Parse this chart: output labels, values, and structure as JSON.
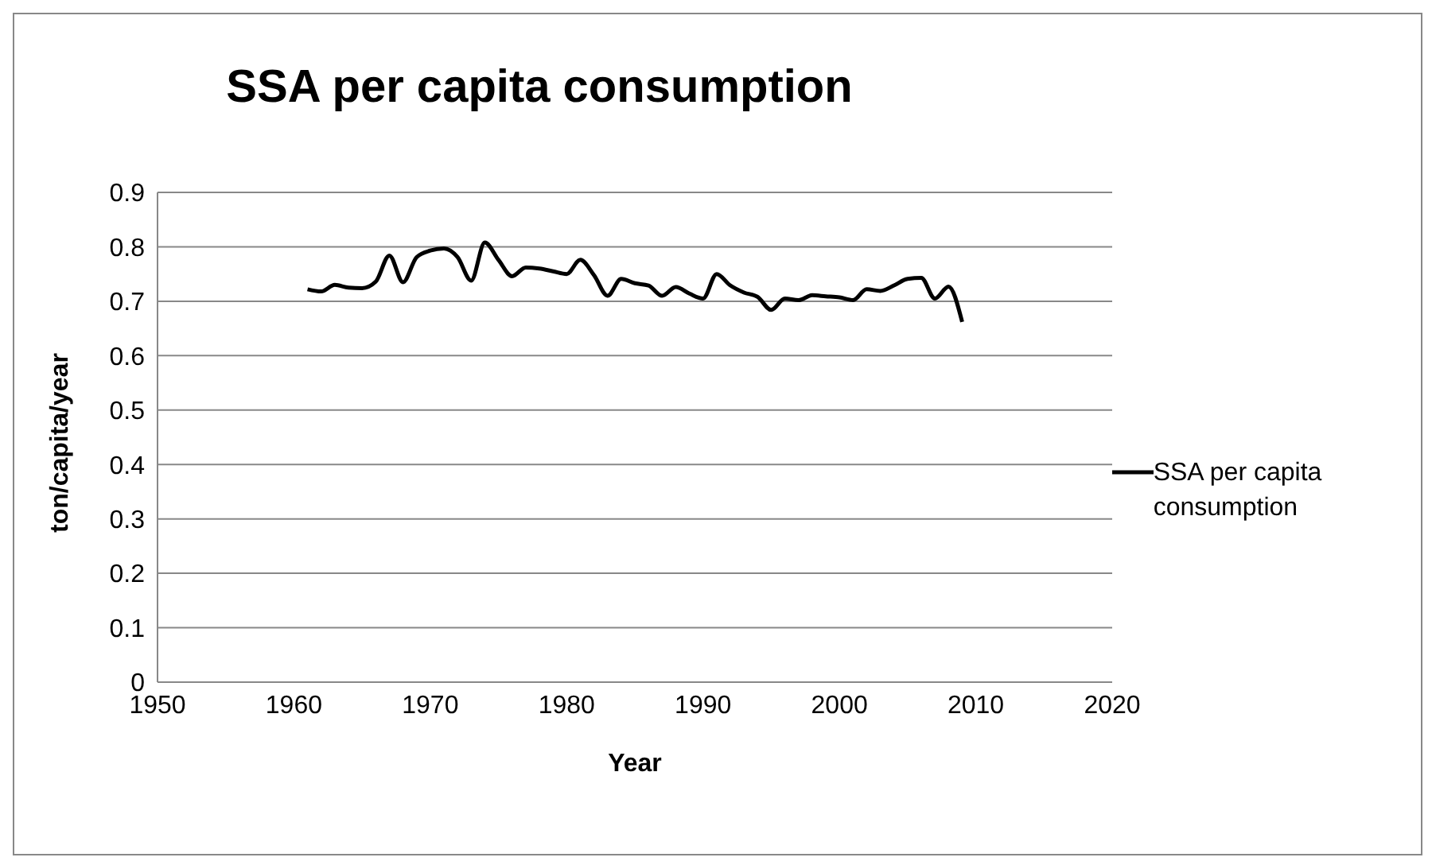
{
  "chart_data": {
    "type": "line",
    "title": "SSA per capita consumption",
    "xlabel": "Year",
    "ylabel": "ton/capita/year",
    "x": [
      1961,
      1962,
      1963,
      1964,
      1965,
      1966,
      1967,
      1968,
      1969,
      1970,
      1971,
      1972,
      1973,
      1974,
      1975,
      1976,
      1977,
      1978,
      1979,
      1980,
      1981,
      1982,
      1983,
      1984,
      1985,
      1986,
      1987,
      1988,
      1989,
      1990,
      1991,
      1992,
      1993,
      1994,
      1995,
      1996,
      1997,
      1998,
      1999,
      2000,
      2001,
      2002,
      2003,
      2004,
      2005,
      2006,
      2007,
      2008,
      2009
    ],
    "series": [
      {
        "name": "SSA per capita consumption",
        "color": "#000000",
        "values": [
          0.722,
          0.718,
          0.73,
          0.725,
          0.724,
          0.736,
          0.784,
          0.735,
          0.781,
          0.793,
          0.797,
          0.781,
          0.738,
          0.808,
          0.776,
          0.746,
          0.762,
          0.76,
          0.755,
          0.75,
          0.776,
          0.748,
          0.71,
          0.741,
          0.733,
          0.729,
          0.71,
          0.726,
          0.714,
          0.705,
          0.75,
          0.729,
          0.716,
          0.708,
          0.684,
          0.705,
          0.702,
          0.711,
          0.709,
          0.707,
          0.702,
          0.722,
          0.719,
          0.729,
          0.741,
          0.743,
          0.705,
          0.727,
          0.662
        ]
      }
    ],
    "xlim": [
      1950,
      2020
    ],
    "xticks": [
      1950,
      1960,
      1970,
      1980,
      1990,
      2000,
      2010,
      2020
    ],
    "ylim": [
      0,
      0.9
    ],
    "yticks": [
      0,
      0.1,
      0.2,
      0.3,
      0.4,
      0.5,
      0.6,
      0.7,
      0.8,
      0.9
    ],
    "grid": "y",
    "legend": "right",
    "marker": "none",
    "line_style": "solid"
  }
}
